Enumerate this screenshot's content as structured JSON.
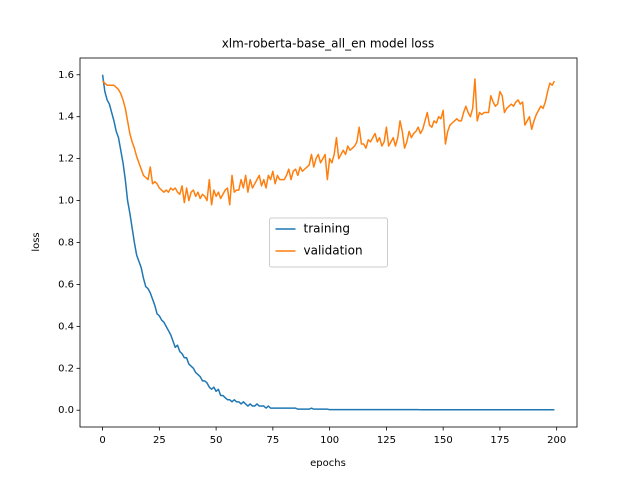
{
  "chart_data": {
    "type": "line",
    "title": "xlm-roberta-base_all_en model loss",
    "x_label": "epochs",
    "y_label": "loss",
    "x": [
      0,
      1,
      2,
      3,
      4,
      5,
      6,
      7,
      8,
      9,
      10,
      11,
      12,
      13,
      14,
      15,
      16,
      17,
      18,
      19,
      20,
      21,
      22,
      23,
      24,
      25,
      26,
      27,
      28,
      29,
      30,
      31,
      32,
      33,
      34,
      35,
      36,
      37,
      38,
      39,
      40,
      41,
      42,
      43,
      44,
      45,
      46,
      47,
      48,
      49,
      50,
      51,
      52,
      53,
      54,
      55,
      56,
      57,
      58,
      59,
      60,
      61,
      62,
      63,
      64,
      65,
      66,
      67,
      68,
      69,
      70,
      71,
      72,
      73,
      74,
      75,
      76,
      77,
      78,
      79,
      80,
      81,
      82,
      83,
      84,
      85,
      86,
      87,
      88,
      89,
      90,
      91,
      92,
      93,
      94,
      95,
      96,
      97,
      98,
      99,
      100,
      101,
      102,
      103,
      104,
      105,
      106,
      107,
      108,
      109,
      110,
      111,
      112,
      113,
      114,
      115,
      116,
      117,
      118,
      119,
      120,
      121,
      122,
      123,
      124,
      125,
      126,
      127,
      128,
      129,
      130,
      131,
      132,
      133,
      134,
      135,
      136,
      137,
      138,
      139,
      140,
      141,
      142,
      143,
      144,
      145,
      146,
      147,
      148,
      149,
      150,
      151,
      152,
      153,
      154,
      155,
      156,
      157,
      158,
      159,
      160,
      161,
      162,
      163,
      164,
      165,
      166,
      167,
      168,
      169,
      170,
      171,
      172,
      173,
      174,
      175,
      176,
      177,
      178,
      179,
      180,
      181,
      182,
      183,
      184,
      185,
      186,
      187,
      188,
      189,
      190,
      191,
      192,
      193,
      194,
      195,
      196,
      197,
      198,
      199
    ],
    "series": [
      {
        "name": "training",
        "color": "#1f77b4",
        "values": [
          1.6,
          1.52,
          1.48,
          1.46,
          1.42,
          1.38,
          1.33,
          1.3,
          1.24,
          1.18,
          1.1,
          1.0,
          0.94,
          0.87,
          0.8,
          0.74,
          0.71,
          0.68,
          0.63,
          0.59,
          0.58,
          0.56,
          0.53,
          0.5,
          0.46,
          0.45,
          0.43,
          0.42,
          0.4,
          0.38,
          0.36,
          0.33,
          0.3,
          0.31,
          0.28,
          0.27,
          0.25,
          0.25,
          0.22,
          0.21,
          0.2,
          0.18,
          0.17,
          0.16,
          0.14,
          0.14,
          0.13,
          0.11,
          0.1,
          0.11,
          0.09,
          0.1,
          0.07,
          0.07,
          0.06,
          0.05,
          0.05,
          0.04,
          0.05,
          0.04,
          0.04,
          0.03,
          0.04,
          0.03,
          0.02,
          0.03,
          0.02,
          0.02,
          0.03,
          0.02,
          0.02,
          0.02,
          0.01,
          0.02,
          0.01,
          0.01,
          0.01,
          0.01,
          0.01,
          0.01,
          0.01,
          0.01,
          0.01,
          0.01,
          0.01,
          0.01,
          0.005,
          0.005,
          0.005,
          0.005,
          0.005,
          0.005,
          0.01,
          0.005,
          0.005,
          0.005,
          0.005,
          0.005,
          0.005,
          0.005,
          0.003,
          0.003,
          0.003,
          0.003,
          0.003,
          0.003,
          0.003,
          0.003,
          0.003,
          0.003,
          0.003,
          0.003,
          0.003,
          0.003,
          0.003,
          0.003,
          0.003,
          0.003,
          0.003,
          0.003,
          0.003,
          0.003,
          0.003,
          0.003,
          0.003,
          0.003,
          0.003,
          0.003,
          0.003,
          0.003,
          0.003,
          0.003,
          0.003,
          0.003,
          0.003,
          0.003,
          0.003,
          0.003,
          0.003,
          0.003,
          0.002,
          0.002,
          0.002,
          0.002,
          0.002,
          0.002,
          0.002,
          0.002,
          0.002,
          0.002,
          0.002,
          0.002,
          0.002,
          0.002,
          0.002,
          0.002,
          0.002,
          0.002,
          0.002,
          0.002,
          0.002,
          0.002,
          0.002,
          0.002,
          0.002,
          0.002,
          0.002,
          0.002,
          0.002,
          0.002,
          0.002,
          0.002,
          0.002,
          0.002,
          0.002,
          0.002,
          0.002,
          0.002,
          0.002,
          0.002,
          0.002,
          0.002,
          0.002,
          0.002,
          0.002,
          0.002,
          0.002,
          0.002,
          0.002,
          0.002,
          0.002,
          0.002,
          0.002,
          0.002,
          0.002,
          0.002,
          0.002,
          0.002,
          0.002,
          0.002
        ]
      },
      {
        "name": "validation",
        "color": "#ff7f0e",
        "values": [
          1.57,
          1.56,
          1.55,
          1.55,
          1.55,
          1.55,
          1.54,
          1.53,
          1.51,
          1.48,
          1.44,
          1.38,
          1.32,
          1.28,
          1.25,
          1.21,
          1.18,
          1.15,
          1.12,
          1.11,
          1.1,
          1.16,
          1.08,
          1.09,
          1.08,
          1.06,
          1.05,
          1.04,
          1.05,
          1.04,
          1.06,
          1.05,
          1.06,
          1.04,
          1.03,
          1.07,
          0.99,
          1.06,
          1.0,
          1.04,
          1.05,
          1.02,
          1.04,
          1.01,
          1.03,
          1.02,
          1.0,
          1.1,
          0.98,
          1.05,
          1.02,
          1.04,
          1.01,
          1.03,
          1.05,
          1.06,
          0.98,
          1.12,
          1.04,
          1.05,
          1.05,
          1.1,
          1.06,
          1.12,
          1.04,
          1.1,
          1.06,
          1.08,
          1.1,
          1.12,
          1.07,
          1.1,
          1.06,
          1.12,
          1.1,
          1.14,
          1.08,
          1.12,
          1.1,
          1.1,
          1.1,
          1.12,
          1.15,
          1.1,
          1.14,
          1.15,
          1.12,
          1.16,
          1.14,
          1.15,
          1.16,
          1.17,
          1.22,
          1.16,
          1.2,
          1.22,
          1.18,
          1.2,
          1.22,
          1.1,
          1.2,
          1.18,
          1.22,
          1.3,
          1.2,
          1.22,
          1.24,
          1.22,
          1.26,
          1.24,
          1.25,
          1.26,
          1.28,
          1.35,
          1.27,
          1.27,
          1.25,
          1.29,
          1.28,
          1.3,
          1.32,
          1.28,
          1.3,
          1.26,
          1.28,
          1.35,
          1.26,
          1.28,
          1.3,
          1.26,
          1.3,
          1.38,
          1.33,
          1.25,
          1.28,
          1.33,
          1.3,
          1.32,
          1.33,
          1.35,
          1.32,
          1.34,
          1.38,
          1.42,
          1.36,
          1.35,
          1.38,
          1.37,
          1.4,
          1.39,
          1.43,
          1.27,
          1.33,
          1.36,
          1.37,
          1.38,
          1.39,
          1.38,
          1.38,
          1.42,
          1.45,
          1.42,
          1.4,
          1.44,
          1.58,
          1.38,
          1.42,
          1.41,
          1.42,
          1.42,
          1.42,
          1.5,
          1.47,
          1.45,
          1.46,
          1.52,
          1.5,
          1.42,
          1.44,
          1.45,
          1.46,
          1.45,
          1.47,
          1.48,
          1.46,
          1.47,
          1.36,
          1.38,
          1.4,
          1.34,
          1.38,
          1.41,
          1.43,
          1.45,
          1.44,
          1.47,
          1.52,
          1.56,
          1.55,
          1.57
        ]
      }
    ],
    "xlim": [
      -9.95,
      208.95
    ],
    "ylim": [
      -0.08,
      1.68
    ],
    "xticks": [
      0,
      25,
      50,
      75,
      100,
      125,
      150,
      175,
      200
    ],
    "yticks": [
      {
        "value": 0,
        "label": "0.0"
      },
      0.2,
      0.4,
      0.6,
      0.8,
      {
        "value": 1,
        "label": "1.0"
      },
      1.2,
      1.4,
      1.6
    ],
    "legend": "center",
    "grid": false
  }
}
